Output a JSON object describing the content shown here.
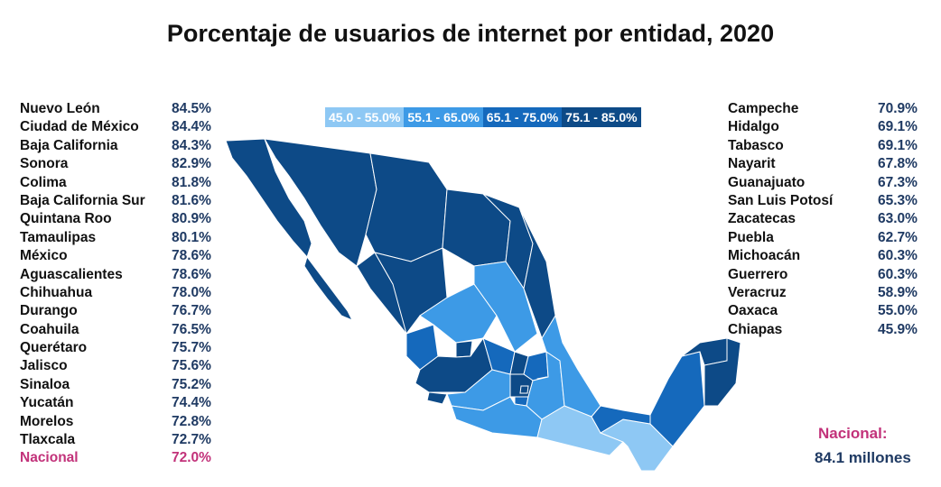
{
  "title": "Porcentaje de usuarios de internet por entidad, 2020",
  "legend": [
    {
      "label": "45.0 - 55.0%",
      "color": "#8ec8f4"
    },
    {
      "label": "55.1 - 65.0%",
      "color": "#3d9ae6"
    },
    {
      "label": "65.1 - 75.0%",
      "color": "#1569bc"
    },
    {
      "label": "75.1 - 85.0%",
      "color": "#0d4a87"
    }
  ],
  "left_list": [
    {
      "name": "Nuevo León",
      "value": "84.5%"
    },
    {
      "name": "Ciudad de México",
      "value": "84.4%"
    },
    {
      "name": "Baja California",
      "value": "84.3%"
    },
    {
      "name": "Sonora",
      "value": "82.9%"
    },
    {
      "name": "Colima",
      "value": "81.8%"
    },
    {
      "name": "Baja California Sur",
      "value": "81.6%"
    },
    {
      "name": "Quintana Roo",
      "value": "80.9%"
    },
    {
      "name": "Tamaulipas",
      "value": "80.1%"
    },
    {
      "name": "México",
      "value": "78.6%"
    },
    {
      "name": "Aguascalientes",
      "value": "78.6%"
    },
    {
      "name": "Chihuahua",
      "value": "78.0%"
    },
    {
      "name": "Durango",
      "value": "76.7%"
    },
    {
      "name": "Coahuila",
      "value": "76.5%"
    },
    {
      "name": "Querétaro",
      "value": "75.7%"
    },
    {
      "name": "Jalisco",
      "value": "75.6%"
    },
    {
      "name": "Sinaloa",
      "value": "75.2%"
    },
    {
      "name": "Yucatán",
      "value": "74.4%"
    },
    {
      "name": "Morelos",
      "value": "72.8%"
    },
    {
      "name": "Tlaxcala",
      "value": "72.7%"
    },
    {
      "name": "Nacional",
      "value": "72.0%",
      "highlight": true
    }
  ],
  "right_list": [
    {
      "name": "Campeche",
      "value": "70.9%"
    },
    {
      "name": "Hidalgo",
      "value": "69.1%"
    },
    {
      "name": "Tabasco",
      "value": "69.1%"
    },
    {
      "name": "Nayarit",
      "value": "67.8%"
    },
    {
      "name": "Guanajuato",
      "value": "67.3%"
    },
    {
      "name": "San Luis Potosí",
      "value": "65.3%"
    },
    {
      "name": "Zacatecas",
      "value": "63.0%"
    },
    {
      "name": "Puebla",
      "value": "62.7%"
    },
    {
      "name": "Michoacán",
      "value": "60.3%"
    },
    {
      "name": "Guerrero",
      "value": "60.3%"
    },
    {
      "name": "Veracruz",
      "value": "58.9%"
    },
    {
      "name": "Oaxaca",
      "value": "55.0%"
    },
    {
      "name": "Chiapas",
      "value": "45.9%"
    }
  ],
  "nacional_total": {
    "label": "Nacional:",
    "value": "84.1 millones"
  },
  "chart_data": {
    "type": "table",
    "title": "Porcentaje de usuarios de internet por entidad, 2020",
    "unit": "%",
    "categories": [
      "Nuevo León",
      "Ciudad de México",
      "Baja California",
      "Sonora",
      "Colima",
      "Baja California Sur",
      "Quintana Roo",
      "Tamaulipas",
      "México",
      "Aguascalientes",
      "Chihuahua",
      "Durango",
      "Coahuila",
      "Querétaro",
      "Jalisco",
      "Sinaloa",
      "Yucatán",
      "Morelos",
      "Tlaxcala",
      "Nacional",
      "Campeche",
      "Hidalgo",
      "Tabasco",
      "Nayarit",
      "Guanajuato",
      "San Luis Potosí",
      "Zacatecas",
      "Puebla",
      "Michoacán",
      "Guerrero",
      "Veracruz",
      "Oaxaca",
      "Chiapas"
    ],
    "values": [
      84.5,
      84.4,
      84.3,
      82.9,
      81.8,
      81.6,
      80.9,
      80.1,
      78.6,
      78.6,
      78.0,
      76.7,
      76.5,
      75.7,
      75.6,
      75.2,
      74.4,
      72.8,
      72.7,
      72.0,
      70.9,
      69.1,
      69.1,
      67.8,
      67.3,
      65.3,
      63.0,
      62.7,
      60.3,
      60.3,
      58.9,
      55.0,
      45.9
    ],
    "legend_bins": [
      "45.0 - 55.0%",
      "55.1 - 65.0%",
      "65.1 - 75.0%",
      "75.1 - 85.0%"
    ],
    "legend_placement": "top-center"
  }
}
